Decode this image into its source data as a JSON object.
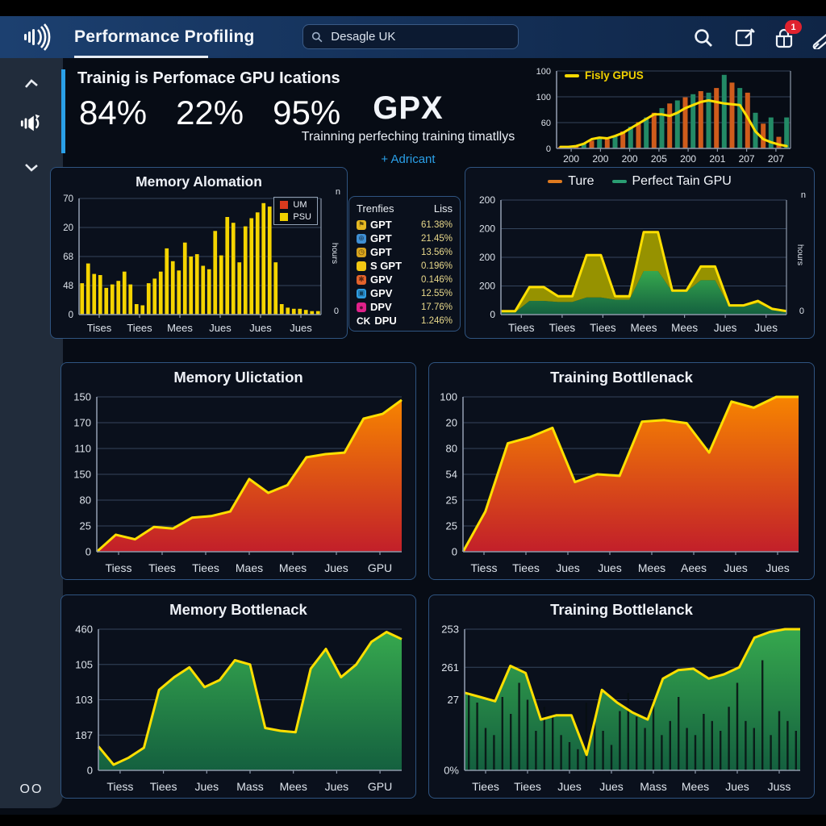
{
  "topbar": {
    "title": "Performance Profiling",
    "search": {
      "value": "Desagle UK"
    },
    "notification_count": "1"
  },
  "sidebar": {
    "bottom_label": "OO"
  },
  "header": {
    "title": "Trainig is Perfomace GPU Ications",
    "stats": [
      {
        "value": "84%"
      },
      {
        "value": "22%"
      },
      {
        "value": "95%"
      }
    ],
    "center": {
      "title": "GPX",
      "subtitle": "Trainning perfeching training timatllys",
      "link": "+ Adricant"
    }
  },
  "trenfies": {
    "col1": "Trenfies",
    "col2": "Liss",
    "rows": [
      {
        "icon": "flag-icon",
        "glyph": "⚑",
        "color": "#e5b822",
        "label": "GPT",
        "value": "61.38%"
      },
      {
        "icon": "globe-icon",
        "glyph": "⊕",
        "color": "#3f8fd4",
        "label": "GPT",
        "value": "21.45%"
      },
      {
        "icon": "clock-icon",
        "glyph": "◷",
        "color": "#d9a41e",
        "label": "GPT",
        "value": "13.56%"
      },
      {
        "icon": "square-icon",
        "glyph": "",
        "color": "#f2c713",
        "label": "S GPT",
        "value": "0.196%"
      },
      {
        "icon": "badge-icon",
        "glyph": "✱",
        "color": "#e2622b",
        "label": "GPV",
        "value": "0.146%"
      },
      {
        "icon": "camera-icon",
        "glyph": "▣",
        "color": "#2f9de2",
        "label": "GPV",
        "value": "12.55%"
      },
      {
        "icon": "dot-icon",
        "glyph": "●",
        "color": "#e0218a",
        "label": "DPV",
        "value": "17.76%"
      },
      {
        "icon": "text-icon",
        "glyph": "CK",
        "color": "none",
        "label": "DPU",
        "value": "1.246%"
      }
    ]
  },
  "right_axis": {
    "top": "n",
    "label": "hours",
    "bottom": "0"
  },
  "colors": {
    "accent_blue": "#2aa0e8",
    "yellow": "#f5d800",
    "orange_bar": "#cf5c1c",
    "teal_bar": "#238a66",
    "red_area_top": "#f78400",
    "red_area_bottom": "#c21f2a",
    "green_area_top": "#36a84e",
    "green_area_bottom": "#14603f",
    "olive": "#969200"
  },
  "chart_data": [
    {
      "id": "gpu-history",
      "type": "bar-line",
      "legend": [
        {
          "label": "Fisly GPUS",
          "color": "#f5d800"
        }
      ],
      "yticks": [
        "100",
        "100",
        "60",
        "0"
      ],
      "xticks": [
        "200",
        "200",
        "200",
        "205",
        "200",
        "201",
        "207",
        "207"
      ],
      "bar_colors": [
        "#cf5c1c",
        "#238a66"
      ],
      "values": [
        2,
        3,
        4,
        6,
        10,
        14,
        12,
        16,
        22,
        28,
        34,
        40,
        46,
        52,
        58,
        62,
        66,
        70,
        74,
        72,
        78,
        95,
        85,
        78,
        72,
        46,
        32,
        40,
        15,
        40
      ],
      "line": [
        2,
        2,
        3,
        6,
        12,
        14,
        13,
        16,
        20,
        26,
        32,
        38,
        44,
        44,
        42,
        46,
        52,
        56,
        60,
        62,
        60,
        58,
        57,
        56,
        40,
        22,
        12,
        8,
        5,
        3
      ],
      "line_color": "#ffdf00",
      "tick_size": 11,
      "xtick_size": 12,
      "margins": {
        "l": 30,
        "r": 14,
        "t": 8,
        "b": 22
      },
      "right_axis_line": true
    },
    {
      "id": "mem-alloc",
      "type": "bar",
      "title": "Memory Alomation",
      "legend": [
        {
          "label": "UM",
          "color": "#d93a1e"
        },
        {
          "label": "PSU",
          "color": "#f0d000"
        }
      ],
      "yticks": [
        "70",
        "20",
        "68",
        "48",
        "0"
      ],
      "xticks": [
        "Tises",
        "Tiees",
        "Mees",
        "Jues",
        "Jues",
        "Jues"
      ],
      "bar_color": "#f5d400",
      "values": [
        27,
        44,
        35,
        34,
        23,
        26,
        29,
        37,
        26,
        9,
        8,
        27,
        31,
        37,
        57,
        46,
        38,
        62,
        50,
        52,
        42,
        39,
        72,
        51,
        84,
        79,
        45,
        76,
        83,
        88,
        96,
        93,
        45,
        9,
        6,
        5,
        5,
        4,
        3,
        3
      ],
      "tick_size": 11.5,
      "xtick_size": 13,
      "margins": {
        "l": 30,
        "r": 8,
        "t": 8,
        "b": 26
      },
      "right_axis_line": true
    },
    {
      "id": "ture-gpu",
      "type": "stacked-area",
      "legend": [
        {
          "label": "Ture",
          "color": "#e07a1f"
        },
        {
          "label": "Perfect Tain GPU",
          "color": "#2a9d72"
        }
      ],
      "yticks": [
        "200",
        "200",
        "200",
        "200",
        "0"
      ],
      "xticks": [
        "Tiees",
        "Tiees",
        "Tiees",
        "Mees",
        "Mees",
        "Jues",
        "Jues"
      ],
      "total": [
        3,
        3,
        24,
        24,
        16,
        16,
        52,
        52,
        16,
        16,
        72,
        72,
        21,
        21,
        42,
        42,
        8,
        8,
        12,
        5,
        3
      ],
      "base": [
        2,
        2,
        12,
        12,
        11,
        11,
        15,
        15,
        13,
        13,
        38,
        38,
        20,
        20,
        30,
        30,
        7,
        7,
        10,
        4,
        2
      ],
      "base_fill_top": "#36a84e",
      "base_fill_bottom": "#14603f",
      "top_fill": "#969200",
      "line_color": "#ffdf00",
      "tick_size": 12,
      "xtick_size": 13.5,
      "margins": {
        "l": 36,
        "r": 10,
        "t": 8,
        "b": 26
      },
      "right_axis_line": true
    },
    {
      "id": "mem-util",
      "type": "area",
      "title": "Memory Ulictation",
      "yticks": [
        "150",
        "170",
        "110",
        "150",
        "80",
        "25",
        "0"
      ],
      "xticks": [
        "Tiess",
        "Tiees",
        "Tiees",
        "Maes",
        "Mees",
        "Jues",
        "GPU"
      ],
      "values": [
        0,
        11,
        8,
        16,
        15,
        22,
        23,
        26,
        47,
        38,
        43,
        61,
        63,
        64,
        86,
        89,
        98
      ],
      "fill_top": "#f78400",
      "fill_bottom": "#c21f2a",
      "line_color": "#ffdf00",
      "tick_size": 13,
      "xtick_size": 14,
      "margins": {
        "l": 38,
        "r": 12,
        "t": 8,
        "b": 30
      }
    },
    {
      "id": "train-bottle",
      "type": "area",
      "title": "Training Bottllenack",
      "yticks": [
        "100",
        "20",
        "80",
        "54",
        "25",
        "25",
        "0"
      ],
      "xticks": [
        "Tiess",
        "Tiees",
        "Jues",
        "Jues",
        "Mees",
        "Aees",
        "Jues",
        "Jues"
      ],
      "values": [
        0,
        26,
        70,
        74,
        80,
        45,
        50,
        49,
        84,
        85,
        83,
        64,
        97,
        93,
        100,
        100
      ],
      "fill_top": "#f78400",
      "fill_bottom": "#c21f2a",
      "line_color": "#ffdf00",
      "tick_size": 13,
      "xtick_size": 14,
      "margins": {
        "l": 36,
        "r": 14,
        "t": 8,
        "b": 30
      }
    },
    {
      "id": "mem-bottle",
      "type": "area",
      "title": "Memory Bottlenack",
      "yticks": [
        "460",
        "105",
        "103",
        "187",
        "0"
      ],
      "xticks": [
        "Tiess",
        "Tiees",
        "Jues",
        "Mass",
        "Mees",
        "Jues",
        "GPU"
      ],
      "values": [
        17,
        4,
        9,
        16,
        57,
        66,
        73,
        59,
        64,
        78,
        75,
        30,
        28,
        27,
        72,
        86,
        66,
        75,
        91,
        98,
        93
      ],
      "fill_top": "#36a84e",
      "fill_bottom": "#14603f",
      "line_color": "#ffdf00",
      "tick_size": 13,
      "xtick_size": 14,
      "margins": {
        "l": 40,
        "r": 12,
        "t": 8,
        "b": 30
      }
    },
    {
      "id": "train-bottle2",
      "type": "area-sticks",
      "title": "Training Bottlelanck",
      "yticks": [
        "253",
        "261",
        "27",
        "0%"
      ],
      "ytick_pos": [
        0,
        0.27,
        0.5,
        1
      ],
      "xticks": [
        "Tiees",
        "Tiees",
        "Jues",
        "Jues",
        "Mass",
        "Mees",
        "Jues",
        "Juss"
      ],
      "values": [
        55,
        52,
        49,
        74,
        69,
        36,
        39,
        39,
        11,
        57,
        48,
        41,
        36,
        65,
        71,
        72,
        65,
        68,
        73,
        94,
        98,
        100,
        100
      ],
      "sticks": [
        55,
        48,
        30,
        25,
        52,
        40,
        62,
        50,
        28,
        45,
        38,
        25,
        20,
        15,
        48,
        35,
        28,
        18,
        42,
        55,
        38,
        30,
        48,
        25,
        35,
        52,
        30,
        25,
        40,
        35,
        28,
        45,
        62,
        35,
        30,
        78,
        25,
        42,
        35,
        28
      ],
      "fill_top": "#36a84e",
      "fill_bottom": "#14603f",
      "line_color": "#ffdf00",
      "tick_size": 13,
      "xtick_size": 14,
      "margins": {
        "l": 38,
        "r": 12,
        "t": 8,
        "b": 30
      }
    }
  ]
}
